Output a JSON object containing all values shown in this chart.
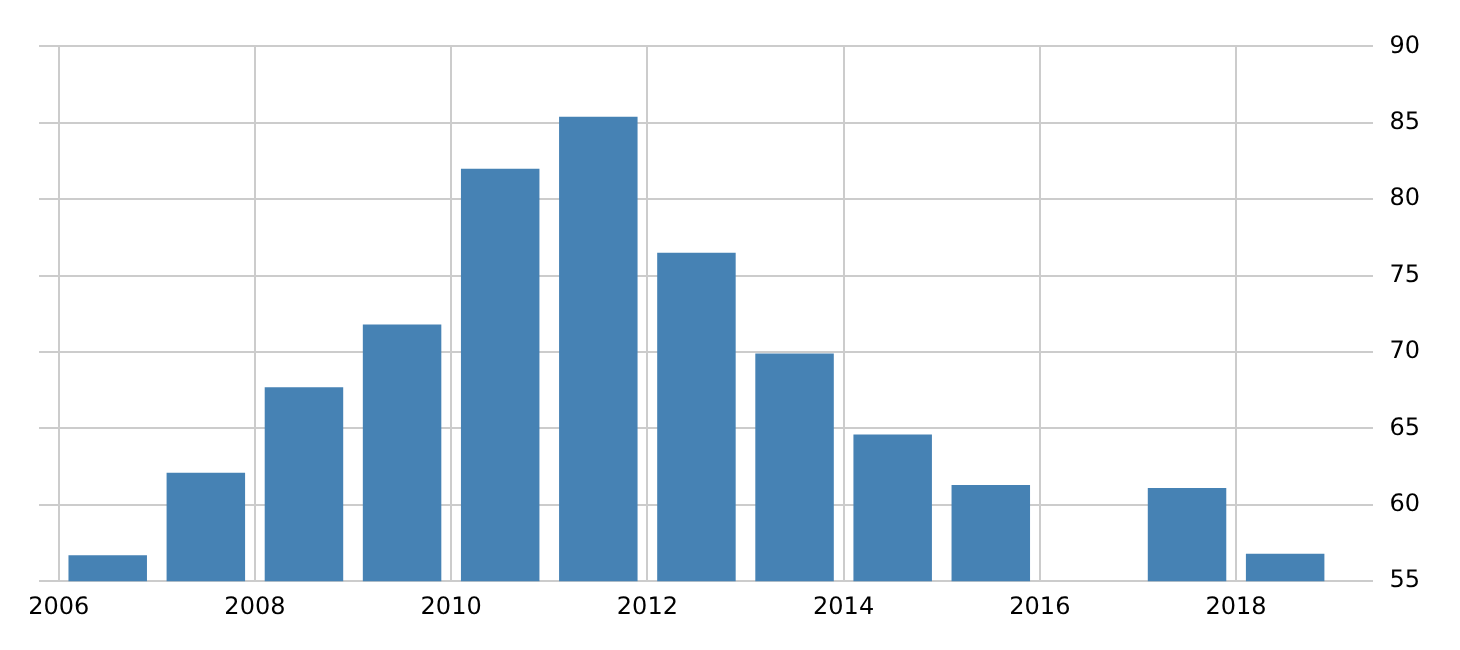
{
  "chart_data": {
    "type": "bar",
    "x": [
      2006.5,
      2007.5,
      2008.5,
      2009.5,
      2010.5,
      2011.5,
      2012.5,
      2013.5,
      2014.5,
      2015.5,
      2016.5,
      2017.5,
      2018.5
    ],
    "values": [
      56.7,
      62.1,
      67.7,
      71.8,
      82.0,
      85.4,
      76.5,
      69.9,
      64.6,
      61.3,
      null,
      61.1,
      56.8
    ],
    "color": "#4682b4",
    "xlim": [
      2005.8,
      2019.4
    ],
    "xticks": [
      2006,
      2008,
      2010,
      2012,
      2014,
      2016,
      2018
    ],
    "ylim": [
      55,
      90
    ],
    "yticks": [
      55,
      60,
      65,
      70,
      75,
      80,
      85,
      90
    ],
    "grid": true
  }
}
